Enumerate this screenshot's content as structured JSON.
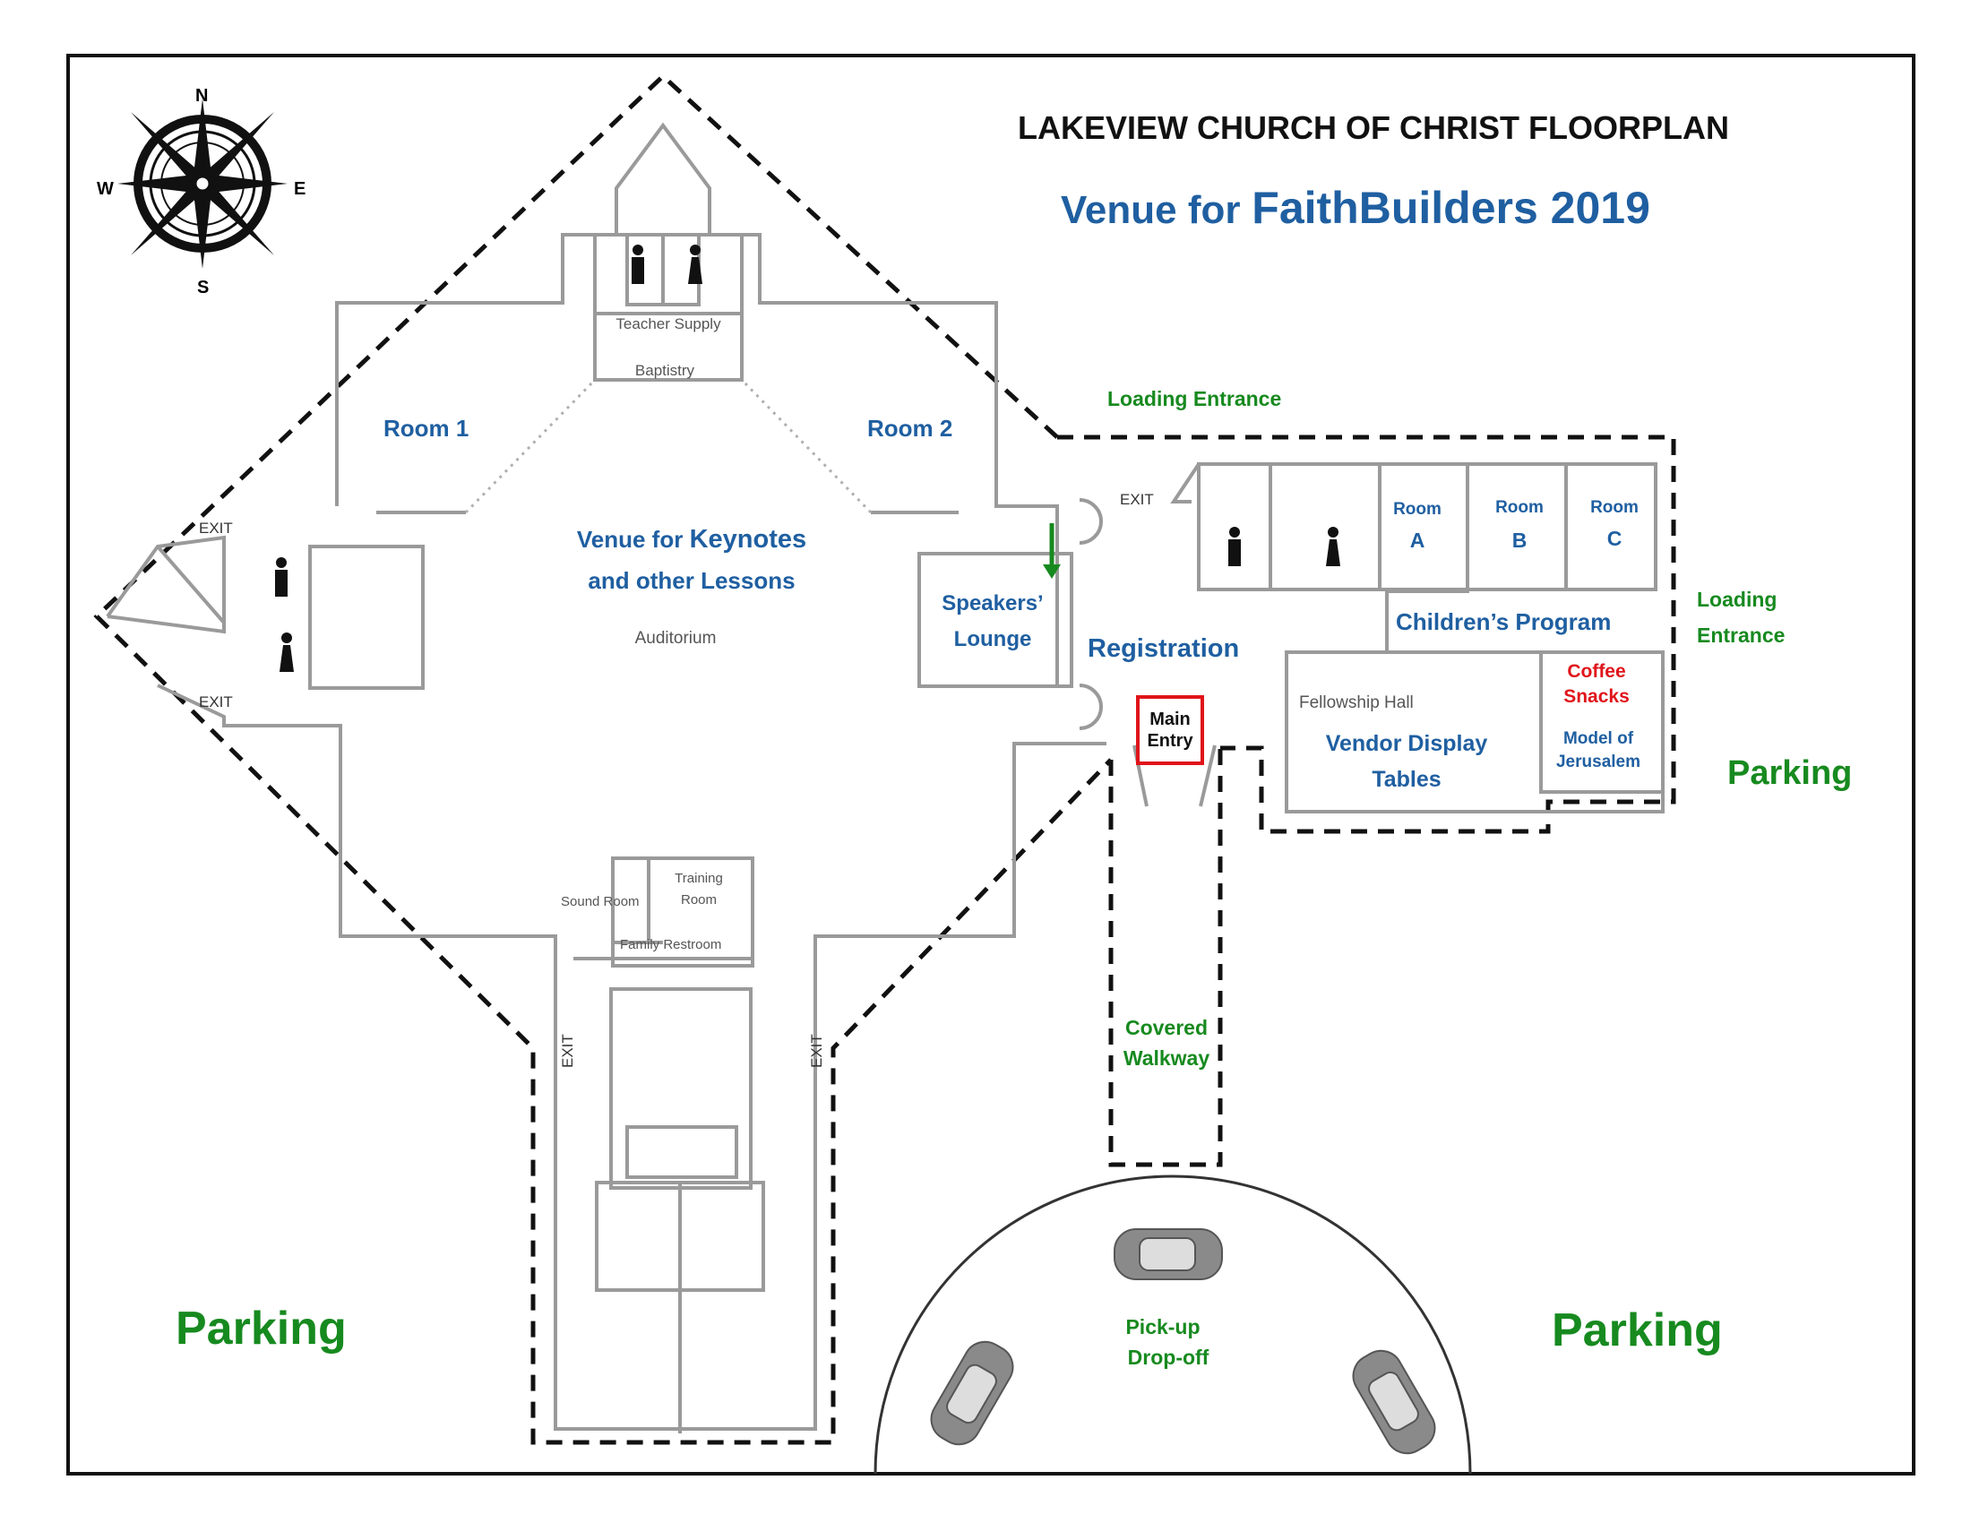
{
  "title": "LAKEVIEW CHURCH OF CHRIST FLOORPLAN",
  "subtitle_prefix": "Venue for",
  "subtitle_event": "FaithBuilders 2019",
  "compass": {
    "n": "N",
    "s": "S",
    "e": "E",
    "w": "W"
  },
  "rooms": {
    "room1": "Room 1",
    "room2": "Room 2",
    "keynote_prefix": "Venue for",
    "keynote_main": "Keynotes",
    "keynote_line2": "and other Lessons",
    "auditorium": "Auditorium",
    "teacher_supply": "Teacher Supply",
    "baptistry": "Baptistry",
    "speakers_lounge_1": "Speakers’",
    "speakers_lounge_2": "Lounge",
    "registration": "Registration",
    "main_entry_1": "Main",
    "main_entry_2": "Entry",
    "room_a_1": "Room",
    "room_a_2": "A",
    "room_b_1": "Room",
    "room_b_2": "B",
    "room_c_1": "Room",
    "room_c_2": "C",
    "childrens_program": "Children’s Program",
    "fellowship_hall": "Fellowship Hall",
    "vendor_1": "Vendor Display",
    "vendor_2": "Tables",
    "coffee": "Coffee",
    "snacks": "Snacks",
    "model_1": "Model of",
    "model_2": "Jerusalem",
    "sound_room": "Sound Room",
    "training_1": "Training",
    "training_2": "Room",
    "family_restroom": "Family Restroom"
  },
  "outdoor": {
    "loading_entrance_top": "Loading Entrance",
    "loading_right_1": "Loading",
    "loading_right_2": "Entrance",
    "parking_right": "Parking",
    "parking_bottom_left": "Parking",
    "parking_bottom_right": "Parking",
    "covered_1": "Covered",
    "covered_2": "Walkway",
    "pickup_1": "Pick-up",
    "pickup_2": "Drop-off"
  },
  "exit_label": "EXIT",
  "colors": {
    "blue": "#1f5fa1",
    "green": "#178a1f",
    "red": "#e0141a"
  }
}
